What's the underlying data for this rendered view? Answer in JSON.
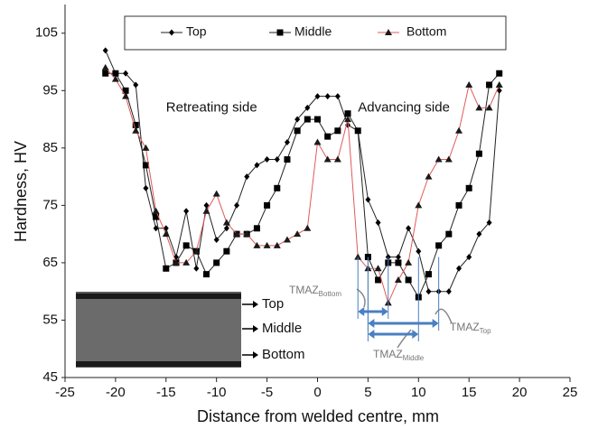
{
  "chart_data": {
    "type": "line",
    "x_label": "Distance from welded centre, mm",
    "y_label": "Hardness, HV",
    "x": [
      -21,
      -20,
      -19,
      -18,
      -17,
      -16,
      -15,
      -14,
      -13,
      -12,
      -11,
      -10,
      -9,
      -8,
      -7,
      -6,
      -5,
      -4,
      -3,
      -2,
      -1,
      0,
      1,
      2,
      3,
      4,
      5,
      6,
      7,
      8,
      9,
      10,
      11,
      12,
      13,
      14,
      15,
      16,
      17,
      18
    ],
    "series": [
      {
        "name": "Top",
        "color": "#222222",
        "marker": "diamond",
        "marker_color": "#000000",
        "values": [
          102,
          98,
          98,
          96,
          78,
          71,
          71,
          66,
          74,
          64,
          75,
          69,
          71,
          75,
          80,
          82,
          83,
          83,
          86,
          90,
          92,
          94,
          94,
          94,
          89,
          88,
          76,
          72,
          66,
          66,
          71,
          67,
          60,
          60,
          60,
          64,
          66,
          70,
          72,
          95
        ]
      },
      {
        "name": "Middle",
        "color": "#222222",
        "marker": "square",
        "marker_color": "#000000",
        "values": [
          98,
          98,
          95,
          89,
          82,
          73,
          64,
          65,
          68,
          67,
          63,
          65,
          67,
          70,
          70,
          71,
          75,
          78,
          83,
          88,
          90,
          90,
          87,
          88,
          91,
          88,
          66,
          62,
          65,
          65,
          62,
          59,
          63,
          68,
          70,
          75,
          78,
          84,
          96,
          98
        ]
      },
      {
        "name": "Bottom",
        "color": "#e05a5a",
        "marker": "triangle",
        "marker_color": "#1a1a1a",
        "values": [
          99,
          97,
          94,
          88,
          85,
          74,
          70,
          65,
          65,
          67,
          74,
          77,
          72,
          70,
          70,
          68,
          68,
          68,
          69,
          70,
          71,
          86,
          83,
          83,
          90,
          66,
          64,
          64,
          58,
          62,
          65,
          75,
          80,
          83,
          83,
          88,
          96,
          92,
          92,
          96
        ]
      }
    ],
    "xlim": [
      -25,
      25
    ],
    "xticks": [
      -25,
      -20,
      -15,
      -10,
      -5,
      0,
      5,
      10,
      15,
      20,
      25
    ],
    "ylim": [
      45,
      110
    ],
    "yticks": [
      45,
      55,
      65,
      75,
      85,
      95,
      105
    ],
    "annotations": [
      {
        "text": "Retreating side",
        "x": -15,
        "y": 92
      },
      {
        "text": "Advancing side",
        "x": 4,
        "y": 92
      }
    ],
    "ranges": [
      {
        "label": "TMAZ",
        "sub": "Bottom",
        "from": 4,
        "to": 7,
        "color": "#4a7fc1"
      },
      {
        "label": "TMAZ",
        "sub": "Top",
        "from": 5,
        "to": 12,
        "color": "#4a7fc1"
      },
      {
        "label": "TMAZ",
        "sub": "Middle",
        "from": 5,
        "to": 10,
        "color": "#4a7fc1"
      }
    ],
    "inset_labels": [
      "Top",
      "Middle",
      "Bottom"
    ]
  }
}
